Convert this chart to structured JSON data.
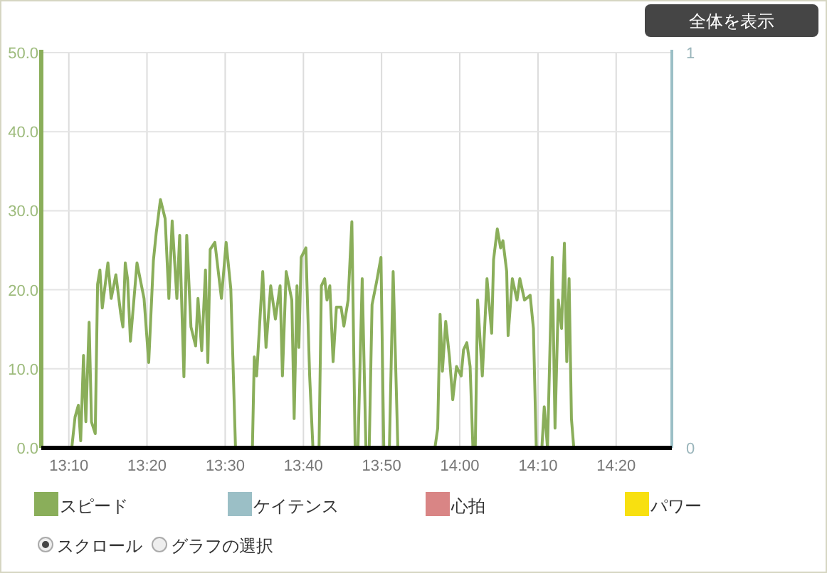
{
  "chart_data": {
    "type": "line",
    "xlim": [
      13.108,
      14.452
    ],
    "ylim": [
      0,
      50
    ],
    "y2lim": [
      0,
      1
    ],
    "xticks": [
      {
        "value": 13.1667,
        "label": "13:10"
      },
      {
        "value": 13.3333,
        "label": "13:20"
      },
      {
        "value": 13.5,
        "label": "13:30"
      },
      {
        "value": 13.6667,
        "label": "13:40"
      },
      {
        "value": 13.8333,
        "label": "13:50"
      },
      {
        "value": 14.0,
        "label": "14:00"
      },
      {
        "value": 14.1667,
        "label": "14:10"
      },
      {
        "value": 14.3333,
        "label": "14:20"
      }
    ],
    "yticks": [
      {
        "value": 0,
        "label": "0.0"
      },
      {
        "value": 10,
        "label": "10.0"
      },
      {
        "value": 20,
        "label": "20.0"
      },
      {
        "value": 30,
        "label": "30.0"
      },
      {
        "value": 40,
        "label": "40.0"
      },
      {
        "value": 50,
        "label": "50.0"
      }
    ],
    "y2ticks": [
      0,
      1
    ],
    "grid": true,
    "legend": "bottom",
    "line_style": "solid",
    "marker": "none",
    "x": [
      13.173,
      13.18,
      13.187,
      13.192,
      13.198,
      13.203,
      13.21,
      13.215,
      13.223,
      13.228,
      13.233,
      13.238,
      13.25,
      13.257,
      13.267,
      13.277,
      13.282,
      13.287,
      13.292,
      13.298,
      13.312,
      13.327,
      13.337,
      13.347,
      13.353,
      13.362,
      13.372,
      13.38,
      13.387,
      13.397,
      13.403,
      13.412,
      13.418,
      13.427,
      13.437,
      13.442,
      13.45,
      13.458,
      13.463,
      13.468,
      13.478,
      13.492,
      13.502,
      13.512,
      13.522,
      13.558,
      13.562,
      13.567,
      13.58,
      13.587,
      13.597,
      13.607,
      13.617,
      13.622,
      13.63,
      13.642,
      13.647,
      13.653,
      13.657,
      13.662,
      13.672,
      13.68,
      13.687,
      13.7,
      13.705,
      13.712,
      13.717,
      13.723,
      13.73,
      13.737,
      13.747,
      13.753,
      13.762,
      13.77,
      13.777,
      13.783,
      13.792,
      13.8,
      13.807,
      13.813,
      13.823,
      13.832,
      13.838,
      13.85,
      13.858,
      13.868,
      13.947,
      13.953,
      13.958,
      13.963,
      13.97,
      13.978,
      13.985,
      13.993,
      14.003,
      14.008,
      14.015,
      14.022,
      14.028,
      14.033,
      14.038,
      14.048,
      14.053,
      14.058,
      14.068,
      14.072,
      14.08,
      14.087,
      14.092,
      14.1,
      14.103,
      14.112,
      14.122,
      14.128,
      14.138,
      14.15,
      14.157,
      14.163,
      14.175,
      14.18,
      14.187,
      14.197,
      14.203,
      14.21,
      14.217,
      14.223,
      14.228,
      14.233,
      14.238,
      14.243
    ],
    "series": [
      {
        "name": "スピード",
        "color": "#8aae5a",
        "values": [
          0,
          3.9,
          5.4,
          0.9,
          11.7,
          3.3,
          15.9,
          3.3,
          1.8,
          20.7,
          22.5,
          17.7,
          23.4,
          18.9,
          21.9,
          17.1,
          15.3,
          23.4,
          21.3,
          13.5,
          23.4,
          18.9,
          10.8,
          23.7,
          27.2,
          31.4,
          29.0,
          18.9,
          28.7,
          18.9,
          26.9,
          9.0,
          26.9,
          15.3,
          12.9,
          18.9,
          12.3,
          22.5,
          10.8,
          25.1,
          26.0,
          18.9,
          26.0,
          20.1,
          0,
          0,
          11.5,
          9.1,
          22.3,
          12.7,
          20.5,
          16.3,
          20.5,
          9.1,
          22.3,
          18.7,
          3.7,
          20.5,
          12.7,
          24.1,
          25.3,
          9.1,
          0,
          0,
          20.5,
          21.4,
          18.7,
          20.5,
          10.9,
          17.8,
          17.8,
          15.4,
          18.7,
          28.6,
          0,
          0,
          21.4,
          0,
          0,
          18.1,
          21.1,
          24.1,
          0,
          0,
          22.3,
          0,
          0,
          2.5,
          16.9,
          9.7,
          16.0,
          11.5,
          6.1,
          10.3,
          9.1,
          12.4,
          13.3,
          10.3,
          0,
          0,
          18.7,
          9.1,
          15.1,
          21.4,
          14.5,
          23.8,
          27.7,
          25.3,
          26.2,
          22.3,
          14.2,
          21.4,
          18.7,
          21.4,
          18.7,
          19.3,
          15.1,
          0,
          0,
          5.2,
          0,
          24.1,
          2.5,
          18.7,
          15.1,
          25.9,
          10.9,
          21.4,
          3.7,
          0
        ]
      },
      {
        "name": "ケイテンス",
        "color": "#9bbfc6",
        "axis": "y2",
        "values": [
          null,
          null,
          null,
          null,
          null,
          null,
          null,
          null,
          null,
          null,
          null,
          null,
          null,
          null,
          null,
          null,
          null,
          null,
          null,
          null,
          null,
          null,
          null,
          null,
          null,
          null,
          null,
          null,
          null,
          null,
          null,
          null,
          null,
          null,
          null,
          null,
          null,
          null,
          null,
          null,
          null,
          null,
          null,
          null,
          null,
          null,
          null,
          null,
          null,
          null,
          null,
          null,
          null,
          null,
          null,
          null,
          null,
          null,
          null,
          null,
          null,
          null,
          null,
          null,
          null,
          null,
          null,
          null,
          null,
          null,
          null,
          null,
          null,
          null,
          null,
          null,
          null,
          null,
          null,
          null,
          null,
          null,
          null,
          null,
          null,
          null,
          null,
          null,
          null,
          null,
          null,
          null,
          null,
          null,
          null,
          null,
          null,
          null,
          null,
          null,
          null,
          null,
          null,
          null,
          null,
          null,
          null,
          null,
          null,
          null,
          null,
          null,
          null,
          null,
          null,
          null,
          null,
          null,
          null,
          null,
          null,
          null,
          null,
          null,
          null,
          null,
          null,
          null,
          null,
          null
        ]
      },
      {
        "name": "心拍",
        "color": "#d98585",
        "values": [
          null,
          null,
          null,
          null,
          null,
          null,
          null,
          null,
          null,
          null,
          null,
          null,
          null,
          null,
          null,
          null,
          null,
          null,
          null,
          null,
          null,
          null,
          null,
          null,
          null,
          null,
          null,
          null,
          null,
          null,
          null,
          null,
          null,
          null,
          null,
          null,
          null,
          null,
          null,
          null,
          null,
          null,
          null,
          null,
          null,
          null,
          null,
          null,
          null,
          null,
          null,
          null,
          null,
          null,
          null,
          null,
          null,
          null,
          null,
          null,
          null,
          null,
          null,
          null,
          null,
          null,
          null,
          null,
          null,
          null,
          null,
          null,
          null,
          null,
          null,
          null,
          null,
          null,
          null,
          null,
          null,
          null,
          null,
          null,
          null,
          null,
          null,
          null,
          null,
          null,
          null,
          null,
          null,
          null,
          null,
          null,
          null,
          null,
          null,
          null,
          null,
          null,
          null,
          null,
          null,
          null,
          null,
          null,
          null,
          null,
          null,
          null,
          null,
          null,
          null,
          null,
          null,
          null,
          null,
          null,
          null,
          null,
          null,
          null,
          null,
          null,
          null,
          null,
          null,
          null
        ]
      },
      {
        "name": "パワー",
        "color": "#f8e010",
        "values": [
          null,
          null,
          null,
          null,
          null,
          null,
          null,
          null,
          null,
          null,
          null,
          null,
          null,
          null,
          null,
          null,
          null,
          null,
          null,
          null,
          null,
          null,
          null,
          null,
          null,
          null,
          null,
          null,
          null,
          null,
          null,
          null,
          null,
          null,
          null,
          null,
          null,
          null,
          null,
          null,
          null,
          null,
          null,
          null,
          null,
          null,
          null,
          null,
          null,
          null,
          null,
          null,
          null,
          null,
          null,
          null,
          null,
          null,
          null,
          null,
          null,
          null,
          null,
          null,
          null,
          null,
          null,
          null,
          null,
          null,
          null,
          null,
          null,
          null,
          null,
          null,
          null,
          null,
          null,
          null,
          null,
          null,
          null,
          null,
          null,
          null,
          null,
          null,
          null,
          null,
          null,
          null,
          null,
          null,
          null,
          null,
          null,
          null,
          null,
          null,
          null,
          null,
          null,
          null,
          null,
          null,
          null,
          null,
          null,
          null,
          null,
          null,
          null,
          null,
          null,
          null,
          null,
          null,
          null,
          null,
          null,
          null,
          null,
          null,
          null,
          null,
          null,
          null,
          null,
          null
        ]
      }
    ],
    "annotations": [
      "全体を表示",
      "スクロール",
      "グラフの選択"
    ]
  }
}
